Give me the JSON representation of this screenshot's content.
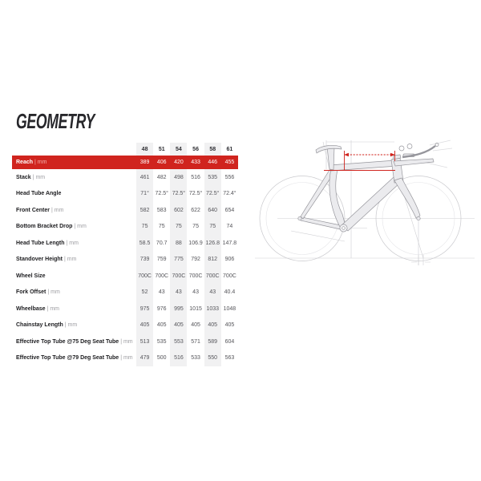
{
  "title": "GEOMETRY",
  "colors": {
    "accent_red": "#d0241e",
    "column_stripe": "#f1f1f2",
    "label_text": "#1c1c1f",
    "value_text": "#55555a",
    "diagram_line": "#c9c9cd",
    "frame_fill": "#ebebee"
  },
  "table": {
    "sizes": [
      "48",
      "51",
      "54",
      "56",
      "58",
      "61"
    ],
    "rows": [
      {
        "label": "Reach",
        "unit": "mm",
        "highlight": true,
        "values": [
          "389",
          "406",
          "420",
          "433",
          "446",
          "455"
        ]
      },
      {
        "label": "Stack",
        "unit": "mm",
        "values": [
          "461",
          "482",
          "498",
          "516",
          "535",
          "556"
        ]
      },
      {
        "label": "Head Tube Angle",
        "unit": "",
        "values": [
          "71°",
          "72.5°",
          "72.5°",
          "72.5°",
          "72.5°",
          "72.4°"
        ]
      },
      {
        "label": "Front Center",
        "unit": "mm",
        "values": [
          "582",
          "583",
          "602",
          "622",
          "640",
          "654"
        ]
      },
      {
        "label": "Bottom Bracket Drop",
        "unit": "mm",
        "values": [
          "75",
          "75",
          "75",
          "75",
          "75",
          "74"
        ]
      },
      {
        "label": "Head Tube Length",
        "unit": "mm",
        "values": [
          "58.5",
          "70.7",
          "88",
          "106.9",
          "126.8",
          "147.8"
        ]
      },
      {
        "label": "Standover Height",
        "unit": "mm",
        "values": [
          "739",
          "759",
          "775",
          "792",
          "812",
          "906"
        ]
      },
      {
        "label": "Wheel Size",
        "unit": "",
        "values": [
          "700C",
          "700C",
          "700C",
          "700C",
          "700C",
          "700C"
        ]
      },
      {
        "label": "Fork Offset",
        "unit": "mm",
        "values": [
          "52",
          "43",
          "43",
          "43",
          "43",
          "40.4"
        ]
      },
      {
        "label": "Wheelbase",
        "unit": "mm",
        "values": [
          "975",
          "976",
          "995",
          "1015",
          "1033",
          "1048"
        ]
      },
      {
        "label": "Chainstay Length",
        "unit": "mm",
        "values": [
          "405",
          "405",
          "405",
          "405",
          "405",
          "405"
        ]
      },
      {
        "label": "Effective Top Tube @75 Deg Seat Tube",
        "unit": "mm",
        "values": [
          "513",
          "535",
          "553",
          "571",
          "589",
          "604"
        ]
      },
      {
        "label": "Effective Top Tube @79 Deg Seat Tube",
        "unit": "mm",
        "values": [
          "479",
          "500",
          "516",
          "533",
          "550",
          "563"
        ]
      }
    ]
  },
  "diagram": {
    "description": "Technical side-view line drawing of a triathlon/TT bike frame with dimension guide lines",
    "highlighted_dimension": "Reach"
  }
}
